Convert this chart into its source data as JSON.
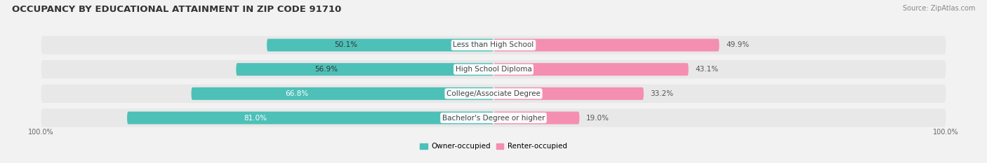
{
  "title": "OCCUPANCY BY EDUCATIONAL ATTAINMENT IN ZIP CODE 91710",
  "source": "Source: ZipAtlas.com",
  "categories": [
    "Less than High School",
    "High School Diploma",
    "College/Associate Degree",
    "Bachelor's Degree or higher"
  ],
  "owner_values": [
    50.1,
    56.9,
    66.8,
    81.0
  ],
  "renter_values": [
    49.9,
    43.1,
    33.2,
    19.0
  ],
  "owner_color": "#4dc0b8",
  "renter_color": "#f48fb1",
  "bg_color": "#f2f2f2",
  "row_bg_color": "#e8e8e8",
  "title_fontsize": 9.5,
  "source_fontsize": 7,
  "label_fontsize": 7.5,
  "cat_fontsize": 7.5,
  "legend_label_owner": "Owner-occupied",
  "legend_label_renter": "Renter-occupied",
  "axis_label_left": "100.0%",
  "axis_label_right": "100.0%"
}
